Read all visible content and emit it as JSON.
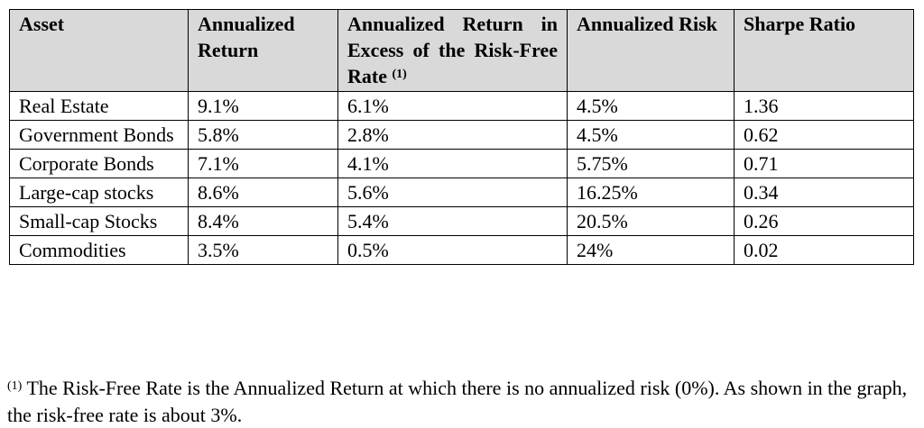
{
  "table": {
    "header": [
      "Asset",
      "Annualized Return",
      "Annualized Return in Excess of the Risk-Free Rate",
      "Annualized Risk",
      "Sharpe Ratio"
    ],
    "header_note": "(1)",
    "rows": [
      [
        "Real Estate",
        "9.1%",
        "6.1%",
        "4.5%",
        "1.36"
      ],
      [
        "Government Bonds",
        "5.8%",
        "2.8%",
        "4.5%",
        "0.62"
      ],
      [
        "Corporate Bonds",
        "7.1%",
        "4.1%",
        "5.75%",
        "0.71"
      ],
      [
        "Large-cap stocks",
        "8.6%",
        "5.6%",
        "16.25%",
        "0.34"
      ],
      [
        "Small-cap Stocks",
        "8.4%",
        "5.4%",
        "20.5%",
        "0.26"
      ],
      [
        "Commodities",
        "3.5%",
        "0.5%",
        "24%",
        "0.02"
      ]
    ]
  },
  "footnote": {
    "marker": "(1)",
    "text": "The Risk-Free Rate is the Annualized Return at which there is no annualized risk (0%).  As shown in the graph, the risk-free rate is about 3%."
  }
}
